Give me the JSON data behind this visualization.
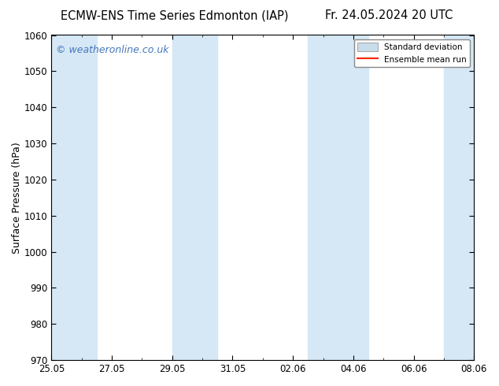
{
  "title_left": "ECMW-ENS Time Series Edmonton (IAP)",
  "title_right": "Fr. 24.05.2024 20 UTC",
  "ylabel": "Surface Pressure (hPa)",
  "ylim": [
    970,
    1060
  ],
  "yticks": [
    970,
    980,
    990,
    1000,
    1010,
    1020,
    1030,
    1040,
    1050,
    1060
  ],
  "x_start_day": 0,
  "x_end_day": 14,
  "xtick_labels": [
    "25.05",
    "27.05",
    "29.05",
    "31.05",
    "02.06",
    "04.06",
    "06.06",
    "08.06"
  ],
  "xtick_positions_days": [
    0,
    2,
    4,
    6,
    9,
    11,
    13,
    15
  ],
  "shaded_bands": [
    {
      "x_start_day": 0,
      "x_end_day": 1.5
    },
    {
      "x_start_day": 4,
      "x_end_day": 5.5
    },
    {
      "x_start_day": 8.5,
      "x_end_day": 10.5
    },
    {
      "x_start_day": 13,
      "x_end_day": 14.5
    }
  ],
  "shade_color": "#d6e8f5",
  "background_color": "#ffffff",
  "plot_bg_color": "#ffffff",
  "watermark_text": "© weatheronline.co.uk",
  "watermark_color": "#4477bb",
  "legend_std_label": "Standard deviation",
  "legend_mean_label": "Ensemble mean run",
  "legend_std_facecolor": "#c8dcea",
  "legend_std_edgecolor": "#aaaaaa",
  "legend_mean_color": "#ff2200",
  "title_fontsize": 10.5,
  "tick_fontsize": 8.5,
  "ylabel_fontsize": 9,
  "watermark_fontsize": 9
}
